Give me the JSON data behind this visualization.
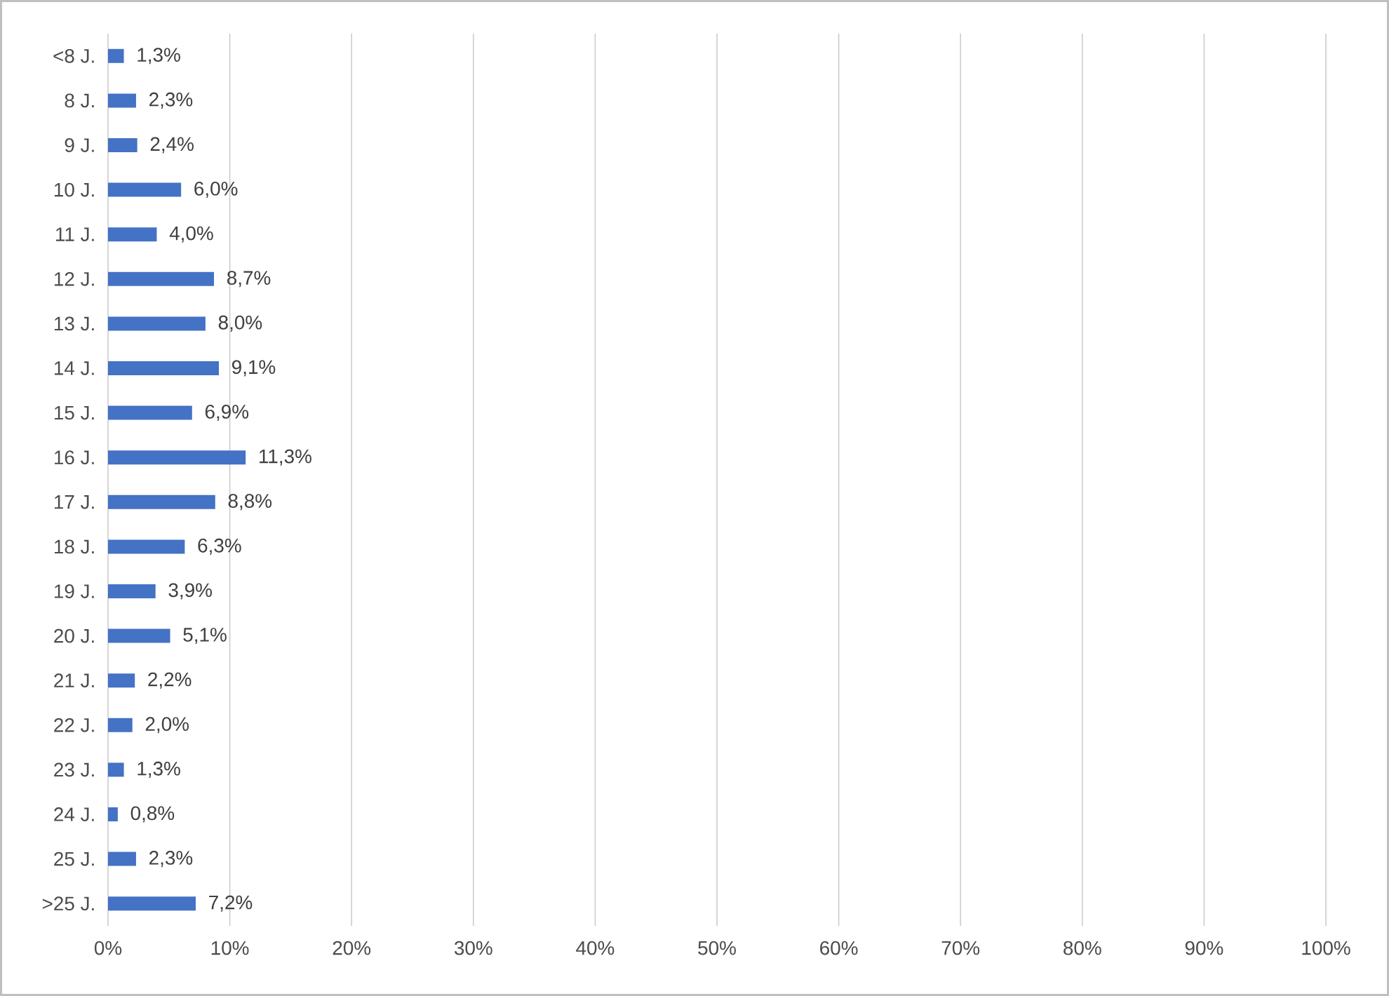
{
  "chart_data": {
    "type": "bar",
    "orientation": "horizontal",
    "categories": [
      "<8 J.",
      "8 J.",
      "9 J.",
      "10 J.",
      "11 J.",
      "12 J.",
      "13 J.",
      "14 J.",
      "15 J.",
      "16 J.",
      "17 J.",
      "18 J.",
      "19 J.",
      "20 J.",
      "21 J.",
      "22 J.",
      "23 J.",
      "24 J.",
      "25 J.",
      ">25 J."
    ],
    "values": [
      1.3,
      2.3,
      2.4,
      6.0,
      4.0,
      8.7,
      8.0,
      9.1,
      6.9,
      11.3,
      8.8,
      6.3,
      3.9,
      5.1,
      2.2,
      2.0,
      1.3,
      0.8,
      2.3,
      7.2
    ],
    "value_labels": [
      "1,3%",
      "2,3%",
      "2,4%",
      "6,0%",
      "4,0%",
      "8,7%",
      "8,0%",
      "9,1%",
      "6,9%",
      "11,3%",
      "8,8%",
      "6,3%",
      "3,9%",
      "5,1%",
      "2,2%",
      "2,0%",
      "1,3%",
      "0,8%",
      "2,3%",
      "7,2%"
    ],
    "color": "#4472c4",
    "xlim": [
      0,
      100
    ],
    "xticks": [
      {
        "value": 0,
        "label": "0%"
      },
      {
        "value": 10,
        "label": "10%"
      },
      {
        "value": 20,
        "label": "20%"
      },
      {
        "value": 30,
        "label": "30%"
      },
      {
        "value": 40,
        "label": "40%"
      },
      {
        "value": 50,
        "label": "50%"
      },
      {
        "value": 60,
        "label": "60%"
      },
      {
        "value": 70,
        "label": "70%"
      },
      {
        "value": 80,
        "label": "80%"
      },
      {
        "value": 90,
        "label": "90%"
      },
      {
        "value": 100,
        "label": "100%"
      }
    ],
    "grid": "x"
  }
}
